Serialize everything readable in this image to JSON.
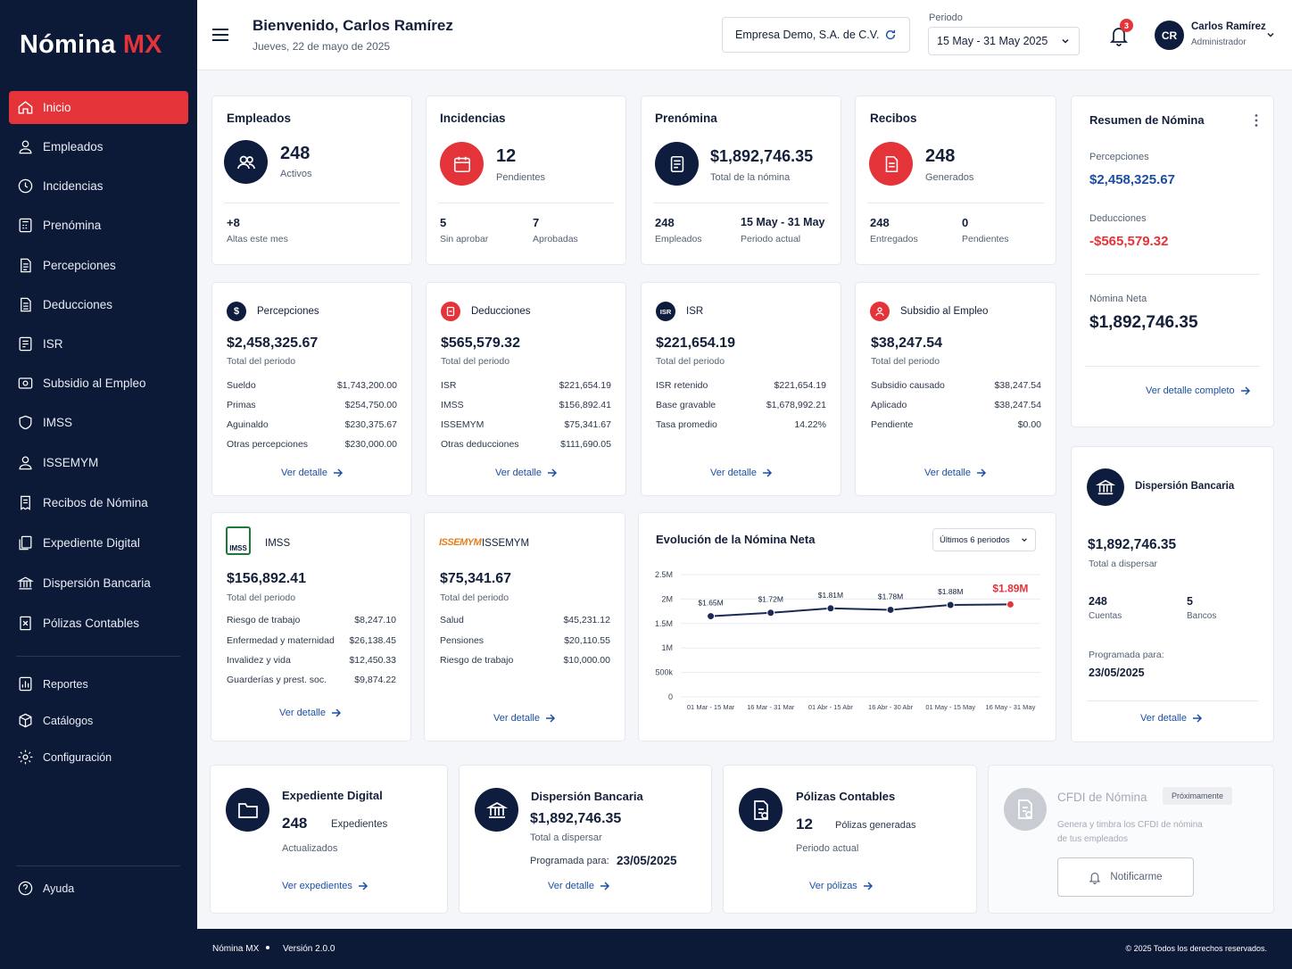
{
  "app": {
    "logo_main": "Nómina",
    "logo_accent": "MX"
  },
  "sidebar": {
    "items": [
      {
        "label": "Inicio",
        "icon": "home-icon"
      },
      {
        "label": "Empleados",
        "icon": "user-icon"
      },
      {
        "label": "Incidencias",
        "icon": "clock-icon"
      },
      {
        "label": "Prenómina",
        "icon": "calculator-icon"
      },
      {
        "label": "Percepciones",
        "icon": "document-icon"
      },
      {
        "label": "Deducciones",
        "icon": "document-minus-icon"
      },
      {
        "label": "ISR",
        "icon": "tax-icon"
      },
      {
        "label": "Subsidio al Empleo",
        "icon": "subsidy-icon"
      },
      {
        "label": "IMSS",
        "icon": "shield-icon"
      },
      {
        "label": "ISSEMYM",
        "icon": "user-shield-icon"
      },
      {
        "label": "Recibos de Nómina",
        "icon": "receipt-icon"
      },
      {
        "label": "Expediente Digital",
        "icon": "files-icon"
      },
      {
        "label": "Dispersión Bancaria",
        "icon": "bank-icon"
      },
      {
        "label": "Pólizas Contables",
        "icon": "ledger-icon"
      }
    ],
    "secondary": [
      {
        "label": "Reportes",
        "icon": "chart-icon"
      },
      {
        "label": "Catálogos",
        "icon": "box-icon"
      },
      {
        "label": "Configuración",
        "icon": "gear-icon"
      }
    ],
    "help": "Ayuda"
  },
  "header": {
    "welcome": "Bienvenido, Carlos Ramírez",
    "date": "Jueves, 22 de mayo de 2025",
    "company": "Empresa Demo, S.A. de C.V.",
    "period_label": "Periodo",
    "period_value": "15 May - 31 May 2025",
    "notifications": "3",
    "avatar": "CR",
    "user_name": "Carlos Ramírez",
    "user_role": "Administrador"
  },
  "stats": {
    "empleados": {
      "title": "Empleados",
      "value": "248",
      "sub": "Activos",
      "a_value": "+8",
      "a_label": "Altas este mes"
    },
    "incidencias": {
      "title": "Incidencias",
      "value": "12",
      "sub": "Pendientes",
      "a_value": "5",
      "a_label": "Sin aprobar",
      "b_value": "7",
      "b_label": "Aprobadas"
    },
    "prenomina": {
      "title": "Prenómina",
      "value": "$1,892,746.35",
      "sub": "Total de la nómina",
      "a_value": "248",
      "a_label": "Empleados",
      "b_value": "15 May - 31 May",
      "b_label": "Periodo actual"
    },
    "recibos": {
      "title": "Recibos",
      "value": "248",
      "sub": "Generados",
      "a_value": "248",
      "a_label": "Entregados",
      "b_value": "0",
      "b_label": "Pendientes"
    }
  },
  "resumen": {
    "title": "Resumen de Nómina",
    "perc_label": "Percepciones",
    "perc_value": "$2,458,325.67",
    "ded_label": "Deducciones",
    "ded_value": "-$565,579.32",
    "neta_label": "Nómina Neta",
    "neta_value": "$1,892,746.35",
    "link": "Ver detalle completo"
  },
  "detail_cards": {
    "percepciones": {
      "title": "Percepciones",
      "amount": "$2,458,325.67",
      "sub": "Total del periodo",
      "rows": [
        [
          "Sueldo",
          "$1,743,200.00"
        ],
        [
          "Primas",
          "$254,750.00"
        ],
        [
          "Aguinaldo",
          "$230,375.67"
        ],
        [
          "Otras percepciones",
          "$230,000.00"
        ]
      ],
      "link": "Ver detalle"
    },
    "deducciones": {
      "title": "Deducciones",
      "amount": "$565,579.32",
      "sub": "Total del periodo",
      "rows": [
        [
          "ISR",
          "$221,654.19"
        ],
        [
          "IMSS",
          "$156,892.41"
        ],
        [
          "ISSEMYM",
          "$75,341.67"
        ],
        [
          "Otras deducciones",
          "$111,690.05"
        ]
      ],
      "link": "Ver detalle"
    },
    "isr": {
      "title": "ISR",
      "badge": "ISR",
      "amount": "$221,654.19",
      "sub": "Total del periodo",
      "rows": [
        [
          "ISR retenido",
          "$221,654.19"
        ],
        [
          "Base gravable",
          "$1,678,992.21"
        ],
        [
          "Tasa promedio",
          "14.22%"
        ]
      ],
      "link": "Ver detalle"
    },
    "subsidio": {
      "title": "Subsidio al Empleo",
      "amount": "$38,247.54",
      "sub": "Total del periodo",
      "rows": [
        [
          "Subsidio causado",
          "$38,247.54"
        ],
        [
          "Aplicado",
          "$38,247.54"
        ],
        [
          "Pendiente",
          "$0.00"
        ]
      ],
      "link": "Ver detalle"
    },
    "imss": {
      "title": "IMSS",
      "logo_text": "IMSS",
      "amount": "$156,892.41",
      "sub": "Total del periodo",
      "rows": [
        [
          "Riesgo de trabajo",
          "$8,247.10"
        ],
        [
          "Enfermedad y maternidad",
          "$26,138.45"
        ],
        [
          "Invalidez y vida",
          "$12,450.33"
        ],
        [
          "Guarderías y prest. soc.",
          "$9,874.22"
        ]
      ],
      "link": "Ver detalle"
    },
    "issemym": {
      "title": "ISSEMYM",
      "logo_text": "ISSEMYM",
      "amount": "$75,341.67",
      "sub": "Total del periodo",
      "rows": [
        [
          "Salud",
          "$45,231.12"
        ],
        [
          "Pensiones",
          "$20,110.55"
        ],
        [
          "Riesgo de trabajo",
          "$10,000.00"
        ]
      ],
      "link": "Ver detalle"
    }
  },
  "chart_card": {
    "title": "Evolución de la Nómina Neta",
    "filter": "Últimos 6 periodos"
  },
  "chart_data": {
    "type": "line",
    "title": "Evolución de la Nómina Neta",
    "categories": [
      "01 Mar - 15 Mar",
      "16 Mar - 31 Mar",
      "01 Abr - 15 Abr",
      "16 Abr - 30 Abr",
      "01 May - 15 May",
      "16 May - 31 May"
    ],
    "values": [
      1.65,
      1.72,
      1.81,
      1.78,
      1.88,
      1.89
    ],
    "data_labels": [
      "$1.65M",
      "$1.72M",
      "$1.81M",
      "$1.78M",
      "$1.88M",
      "$1.89M"
    ],
    "y_ticks": [
      "0",
      "500k",
      "1M",
      "1.5M",
      "2M",
      "2.5M"
    ],
    "ylim": [
      0,
      2.5
    ],
    "grid": true,
    "line_color": "#1b2a55",
    "highlight_color": "#e5333a"
  },
  "dispersion": {
    "title": "Dispersión Bancaria",
    "amount": "$1,892,746.35",
    "sub": "Total a dispersar",
    "a_value": "248",
    "a_label": "Cuentas",
    "b_value": "5",
    "b_label": "Bancos",
    "prog_label": "Programada para:",
    "prog_value": "23/05/2025",
    "link": "Ver detalle"
  },
  "bottom": {
    "expediente": {
      "title": "Expediente Digital",
      "value": "248",
      "unit": "Expedientes",
      "sub": "Actualizados",
      "link": "Ver expedientes"
    },
    "dispersion": {
      "title": "Dispersión Bancaria",
      "amount": "$1,892,746.35",
      "sub": "Total a dispersar",
      "prog_label": "Programada para:",
      "prog_value": "23/05/2025",
      "link": "Ver detalle"
    },
    "polizas": {
      "title": "Pólizas Contables",
      "value": "12",
      "unit": "Pólizas generadas",
      "sub": "Periodo actual",
      "link": "Ver pólizas"
    },
    "cfdi": {
      "title": "CFDI de Nómina",
      "badge": "Próximamente",
      "desc1": "Genera y timbra los CFDI de nómina",
      "desc2": "de tus empleados",
      "button": "Notificarme"
    }
  },
  "footer": {
    "app": "Nómina MX",
    "version": "Versión 2.0.0",
    "copyright": "© 2025 Todos los derechos reservados."
  },
  "colors": {
    "navy": "#0c1a38",
    "accent": "#e5333a",
    "link": "#1c4fa3",
    "positive": "#1c4fa3",
    "negative": "#e5333a"
  }
}
